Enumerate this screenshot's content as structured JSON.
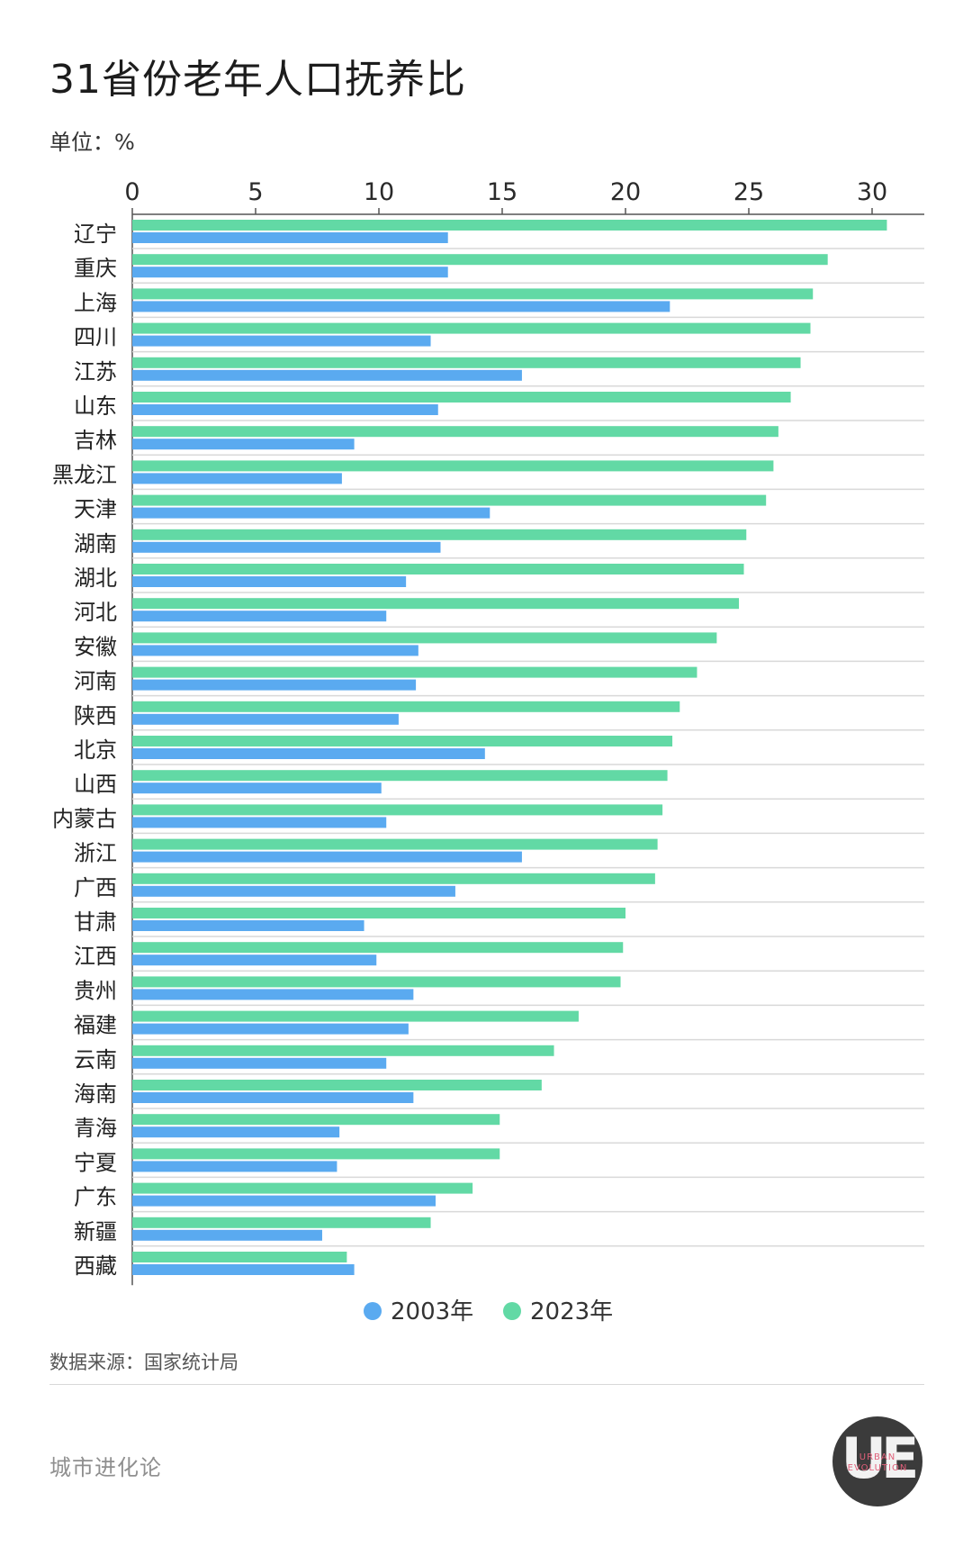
{
  "title": "31省份老年人口抚养比",
  "unit_label": "单位：%",
  "source_label": "数据来源：国家统计局",
  "brand": "城市进化论",
  "logo": {
    "mark": "UE",
    "text": "URBAN EVOLUTION"
  },
  "colors": {
    "series_2003": "#5aaaf0",
    "series_2023": "#62d9a5",
    "axis": "#555555",
    "grid": "#d9d9d9"
  },
  "chart_data": {
    "type": "bar",
    "orientation": "horizontal",
    "title": "31省份老年人口抚养比",
    "unit": "%",
    "xlim": [
      0,
      32
    ],
    "x_ticks": [
      "0",
      "5",
      "10",
      "15",
      "20",
      "25",
      "30"
    ],
    "x_axis_position": "top",
    "legend_position": "bottom-center",
    "grid": "horizontal separators",
    "categories": [
      "辽宁",
      "重庆",
      "上海",
      "四川",
      "江苏",
      "山东",
      "吉林",
      "黑龙江",
      "天津",
      "湖南",
      "湖北",
      "河北",
      "安徽",
      "河南",
      "陕西",
      "北京",
      "山西",
      "内蒙古",
      "浙江",
      "广西",
      "甘肃",
      "江西",
      "贵州",
      "福建",
      "云南",
      "海南",
      "青海",
      "宁夏",
      "广东",
      "新疆",
      "西藏"
    ],
    "series": [
      {
        "name": "2023年",
        "color": "#62d9a5",
        "values": [
          30.6,
          28.2,
          27.6,
          27.5,
          27.1,
          26.7,
          26.2,
          26.0,
          25.7,
          24.9,
          24.8,
          24.6,
          23.7,
          22.9,
          22.2,
          21.9,
          21.7,
          21.5,
          21.3,
          21.2,
          20.0,
          19.9,
          19.8,
          18.1,
          17.1,
          16.6,
          14.9,
          14.9,
          13.8,
          12.1,
          8.7
        ]
      },
      {
        "name": "2003年",
        "color": "#5aaaf0",
        "values": [
          12.8,
          12.8,
          21.8,
          12.1,
          15.8,
          12.4,
          9.0,
          8.5,
          14.5,
          12.5,
          11.1,
          10.3,
          11.6,
          11.5,
          10.8,
          14.3,
          10.1,
          10.3,
          15.8,
          13.1,
          9.4,
          9.9,
          11.4,
          11.2,
          10.3,
          11.4,
          8.4,
          8.3,
          12.3,
          7.7,
          9.0
        ]
      }
    ],
    "legend": [
      "2003年",
      "2023年"
    ]
  }
}
